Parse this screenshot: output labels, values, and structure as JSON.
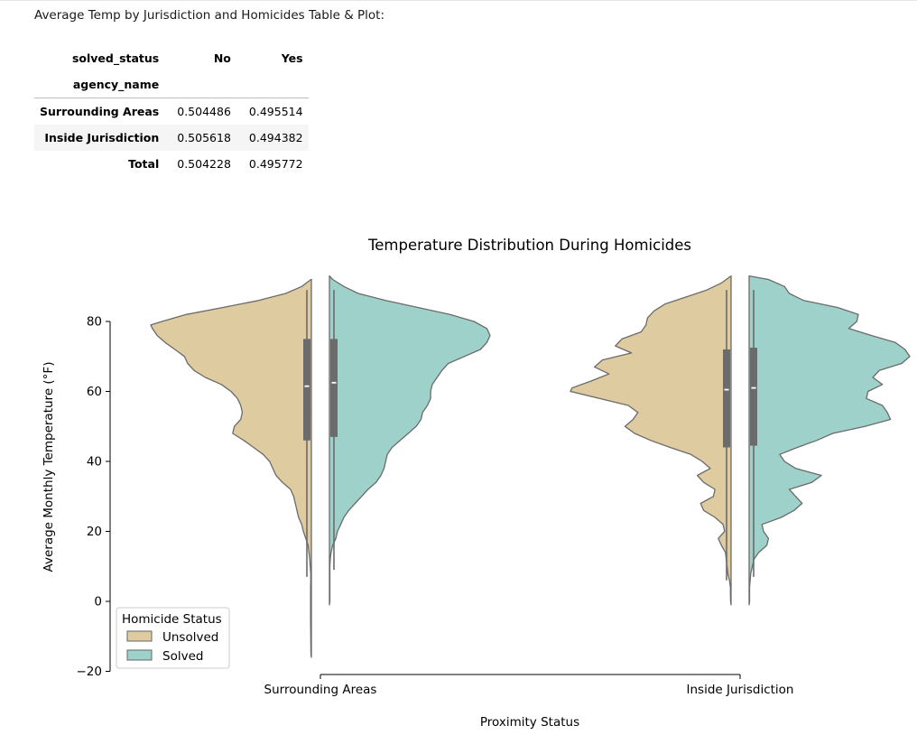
{
  "caption": "Average Temp by Jurisdiction and Homicides Table & Plot:",
  "table": {
    "columns_name": "solved_status",
    "columns": [
      "No",
      "Yes"
    ],
    "index_name": "agency_name",
    "rows": [
      {
        "label": "Surrounding Areas",
        "values": [
          "0.504486",
          "0.495514"
        ]
      },
      {
        "label": "Inside Jurisdiction",
        "values": [
          "0.505618",
          "0.494382"
        ]
      },
      {
        "label": "Total",
        "values": [
          "0.504228",
          "0.495772"
        ]
      }
    ]
  },
  "chart_data": {
    "type": "violin",
    "title": "Temperature Distribution During Homicides",
    "xlabel": "Proximity Status",
    "ylabel": "Average Monthly Temperature (°F)",
    "categories": [
      "Surrounding Areas",
      "Inside Jurisdiction"
    ],
    "ylim": [
      -20,
      93
    ],
    "yticks": [
      -20,
      0,
      20,
      40,
      60,
      80
    ],
    "grid": false,
    "split": true,
    "legend": {
      "title": "Homicide Status",
      "placement": "lower-left"
    },
    "series": [
      {
        "name": "Unsolved",
        "color": "#dfcba0",
        "box": [
          {
            "q1": 46,
            "median": 61.5,
            "q3": 75,
            "whisker_low": 7,
            "whisker_high": 89
          },
          {
            "q1": 44,
            "median": 60.5,
            "q3": 72,
            "whisker_low": 6,
            "whisker_high": 89
          }
        ],
        "profiles": [
          [
            [
              92,
              0.002
            ],
            [
              90,
              0.06
            ],
            [
              88,
              0.16
            ],
            [
              86,
              0.33
            ],
            [
              84,
              0.55
            ],
            [
              82,
              0.78
            ],
            [
              80,
              0.93
            ],
            [
              79,
              1.0
            ],
            [
              78,
              0.99
            ],
            [
              76,
              0.96
            ],
            [
              74,
              0.91
            ],
            [
              72,
              0.85
            ],
            [
              70,
              0.79
            ],
            [
              68,
              0.77
            ],
            [
              66,
              0.73
            ],
            [
              64,
              0.66
            ],
            [
              62,
              0.56
            ],
            [
              60,
              0.5
            ],
            [
              58,
              0.46
            ],
            [
              56,
              0.44
            ],
            [
              54,
              0.43
            ],
            [
              52,
              0.44
            ],
            [
              50,
              0.48
            ],
            [
              48,
              0.49
            ],
            [
              46,
              0.42
            ],
            [
              44,
              0.36
            ],
            [
              42,
              0.3
            ],
            [
              40,
              0.26
            ],
            [
              38,
              0.24
            ],
            [
              36,
              0.22
            ],
            [
              34,
              0.18
            ],
            [
              32,
              0.13
            ],
            [
              30,
              0.11
            ],
            [
              28,
              0.1
            ],
            [
              26,
              0.09
            ],
            [
              24,
              0.08
            ],
            [
              22,
              0.06
            ],
            [
              20,
              0.05
            ],
            [
              18,
              0.035
            ],
            [
              16,
              0.02
            ],
            [
              12,
              0.01
            ],
            [
              8,
              0.004
            ],
            [
              6,
              0.004
            ],
            [
              4,
              0.005
            ],
            [
              0,
              0.005
            ],
            [
              -5,
              0.005
            ],
            [
              -10,
              0.004
            ],
            [
              -15,
              0.003
            ],
            [
              -16,
              0.0
            ]
          ],
          [
            [
              93,
              0.0
            ],
            [
              91,
              0.06
            ],
            [
              89,
              0.15
            ],
            [
              87,
              0.28
            ],
            [
              85,
              0.41
            ],
            [
              83,
              0.48
            ],
            [
              81,
              0.52
            ],
            [
              79,
              0.53
            ],
            [
              77,
              0.56
            ],
            [
              75,
              0.68
            ],
            [
              73,
              0.72
            ],
            [
              71,
              0.62
            ],
            [
              69,
              0.8
            ],
            [
              67,
              0.85
            ],
            [
              65,
              0.76
            ],
            [
              63,
              0.87
            ],
            [
              61,
              0.99
            ],
            [
              60,
              1.0
            ],
            [
              58,
              0.82
            ],
            [
              56,
              0.64
            ],
            [
              54,
              0.58
            ],
            [
              52,
              0.61
            ],
            [
              50,
              0.66
            ],
            [
              48,
              0.6
            ],
            [
              46,
              0.5
            ],
            [
              44,
              0.38
            ],
            [
              42,
              0.25
            ],
            [
              40,
              0.18
            ],
            [
              38,
              0.13
            ],
            [
              36,
              0.21
            ],
            [
              34,
              0.17
            ],
            [
              32,
              0.1
            ],
            [
              30,
              0.11
            ],
            [
              28,
              0.19
            ],
            [
              26,
              0.17
            ],
            [
              24,
              0.1
            ],
            [
              22,
              0.05
            ],
            [
              20,
              0.04
            ],
            [
              18,
              0.08
            ],
            [
              16,
              0.06
            ],
            [
              14,
              0.035
            ],
            [
              12,
              0.03
            ],
            [
              10,
              0.025
            ],
            [
              8,
              0.02
            ],
            [
              6,
              0.01
            ],
            [
              4,
              0.004
            ],
            [
              2,
              0.004
            ],
            [
              0,
              0.003
            ],
            [
              -1,
              0.0
            ]
          ]
        ]
      },
      {
        "name": "Solved",
        "color": "#9fd1cb",
        "box": [
          {
            "q1": 47,
            "median": 62.5,
            "q3": 75,
            "whisker_low": 9,
            "whisker_high": 89
          },
          {
            "q1": 44.5,
            "median": 61,
            "q3": 72.5,
            "whisker_low": 7,
            "whisker_high": 89
          }
        ],
        "profiles": [
          [
            [
              93,
              0.0
            ],
            [
              92,
              0.02
            ],
            [
              90,
              0.09
            ],
            [
              88,
              0.18
            ],
            [
              86,
              0.35
            ],
            [
              84,
              0.55
            ],
            [
              82,
              0.75
            ],
            [
              80,
              0.9
            ],
            [
              78,
              0.98
            ],
            [
              76,
              1.0
            ],
            [
              74,
              0.98
            ],
            [
              72,
              0.94
            ],
            [
              70,
              0.84
            ],
            [
              68,
              0.74
            ],
            [
              66,
              0.7
            ],
            [
              64,
              0.67
            ],
            [
              62,
              0.64
            ],
            [
              60,
              0.63
            ],
            [
              58,
              0.63
            ],
            [
              56,
              0.61
            ],
            [
              54,
              0.58
            ],
            [
              52,
              0.57
            ],
            [
              50,
              0.54
            ],
            [
              48,
              0.49
            ],
            [
              46,
              0.44
            ],
            [
              44,
              0.39
            ],
            [
              42,
              0.36
            ],
            [
              40,
              0.35
            ],
            [
              38,
              0.34
            ],
            [
              36,
              0.32
            ],
            [
              34,
              0.29
            ],
            [
              32,
              0.24
            ],
            [
              30,
              0.2
            ],
            [
              28,
              0.16
            ],
            [
              26,
              0.12
            ],
            [
              24,
              0.09
            ],
            [
              22,
              0.07
            ],
            [
              20,
              0.05
            ],
            [
              18,
              0.04
            ],
            [
              16,
              0.02
            ],
            [
              14,
              0.01
            ],
            [
              12,
              0.005
            ],
            [
              10,
              0.003
            ],
            [
              8,
              0.003
            ],
            [
              4,
              0.003
            ],
            [
              0,
              0.003
            ],
            [
              -1,
              0.0
            ]
          ],
          [
            [
              93,
              0.0
            ],
            [
              92,
              0.12
            ],
            [
              90,
              0.22
            ],
            [
              88,
              0.25
            ],
            [
              86,
              0.34
            ],
            [
              84,
              0.55
            ],
            [
              82,
              0.68
            ],
            [
              80,
              0.67
            ],
            [
              78,
              0.62
            ],
            [
              76,
              0.76
            ],
            [
              74,
              0.91
            ],
            [
              72,
              0.97
            ],
            [
              70,
              1.0
            ],
            [
              68,
              0.95
            ],
            [
              66,
              0.81
            ],
            [
              64,
              0.77
            ],
            [
              62,
              0.83
            ],
            [
              60,
              0.74
            ],
            [
              58,
              0.73
            ],
            [
              56,
              0.83
            ],
            [
              54,
              0.86
            ],
            [
              52,
              0.88
            ],
            [
              50,
              0.72
            ],
            [
              48,
              0.52
            ],
            [
              46,
              0.42
            ],
            [
              44,
              0.3
            ],
            [
              42,
              0.19
            ],
            [
              40,
              0.22
            ],
            [
              38,
              0.29
            ],
            [
              36,
              0.45
            ],
            [
              34,
              0.39
            ],
            [
              32,
              0.25
            ],
            [
              30,
              0.29
            ],
            [
              28,
              0.33
            ],
            [
              26,
              0.28
            ],
            [
              24,
              0.2
            ],
            [
              22,
              0.08
            ],
            [
              20,
              0.09
            ],
            [
              18,
              0.12
            ],
            [
              16,
              0.11
            ],
            [
              14,
              0.06
            ],
            [
              12,
              0.03
            ],
            [
              10,
              0.02
            ],
            [
              8,
              0.01
            ],
            [
              4,
              0.003
            ],
            [
              0,
              0.003
            ],
            [
              -1,
              0.0
            ]
          ]
        ]
      }
    ]
  }
}
